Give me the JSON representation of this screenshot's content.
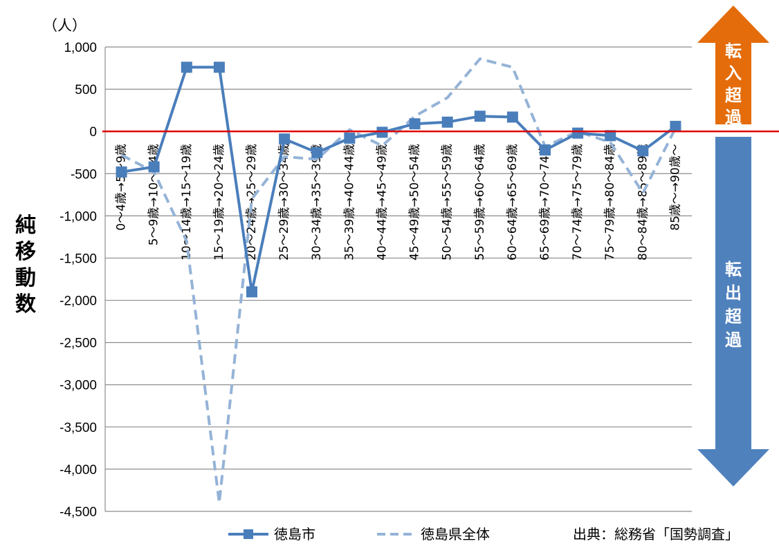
{
  "chart_data": {
    "type": "line",
    "unit_label": "（人）",
    "ylabel": "純移動数",
    "ylim": [
      -4500,
      1000
    ],
    "yticks": [
      1000,
      500,
      0,
      -500,
      -1000,
      -1500,
      -2000,
      -2500,
      -3000,
      -3500,
      -4000,
      -4500
    ],
    "ytick_labels": [
      "1,000",
      "500",
      "0",
      "-500",
      "-1,000",
      "-1,500",
      "-2,000",
      "-2,500",
      "-3,000",
      "-3,500",
      "-4,000",
      "-4,500"
    ],
    "grid": true,
    "categories": [
      "0～4歳→5～9歳",
      "5～9歳→10～14歳",
      "10～14歳→15～19歳",
      "15～19歳→20～24歳",
      "20～24歳→25～29歳",
      "25～29歳→30～34歳",
      "30～34歳→35～39歳",
      "35～39歳→40～44歳",
      "40～44歳→45～49歳",
      "45～49歳→50～54歳",
      "50～54歳→55～59歳",
      "55～59歳→60～64歳",
      "60～64歳→65～69歳",
      "65～69歳→70～74歳",
      "70～74歳→75～79歳",
      "75～79歳→80～84歳",
      "80～84歳→85～89歳",
      "85歳～→90歳～"
    ],
    "series": [
      {
        "name": "徳島市",
        "style": "solid-square",
        "color": "#4a7ebb",
        "values": [
          -480,
          -420,
          760,
          760,
          -1900,
          -90,
          -250,
          -80,
          -10,
          90,
          110,
          180,
          170,
          -220,
          -20,
          -50,
          -230,
          60
        ]
      },
      {
        "name": "徳島県全体",
        "style": "dashed",
        "color": "#95b3d7",
        "values": [
          -280,
          -480,
          -1300,
          -4400,
          -800,
          -300,
          -330,
          20,
          -170,
          180,
          400,
          860,
          760,
          -180,
          0,
          -130,
          -730,
          40
        ]
      }
    ],
    "zero_line_color": "#e00000",
    "legend": "bottom",
    "source": "出典：総務省「国勢調査」"
  },
  "arrows": {
    "in_label": "転入超過",
    "in_color": "#e46c0a",
    "out_label": "転出超過",
    "out_color": "#4f81bd"
  }
}
